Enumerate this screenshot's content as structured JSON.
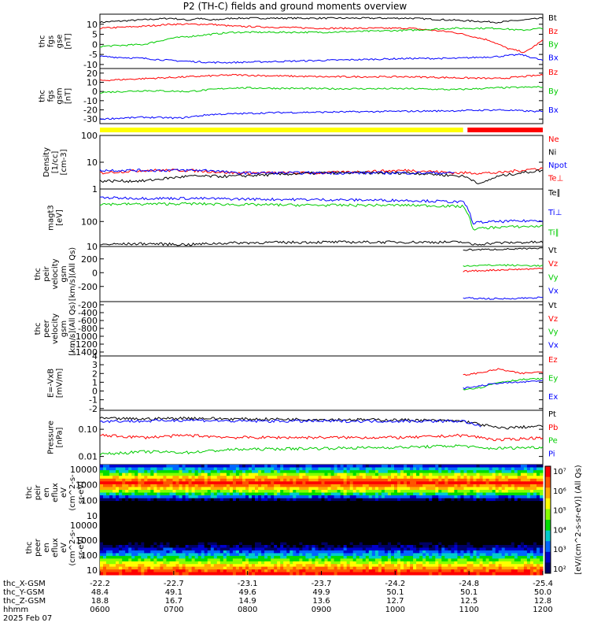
{
  "title": "P2 (TH-C) fields and ground moments overview",
  "colors": {
    "black": "#000000",
    "red": "#ff0000",
    "green": "#00cc00",
    "blue": "#0000ff",
    "yellow": "#ffff00"
  },
  "chart_data": [
    {
      "type": "line",
      "panel": "fgs_gse",
      "ylabel": [
        "thc",
        "fgs",
        "gse",
        "[nT]"
      ],
      "ylim": [
        -12,
        15
      ],
      "ticks": [
        10,
        5,
        0,
        -5,
        -10
      ],
      "series": [
        {
          "name": "Bt",
          "color": "#000000",
          "x": [
            0,
            0.16,
            0.2,
            0.22,
            0.25,
            0.3,
            0.5,
            0.7,
            0.8,
            0.9,
            0.95,
            1
          ],
          "y": [
            11,
            13,
            12,
            13,
            12,
            13,
            13,
            13,
            12,
            11,
            12,
            13
          ]
        },
        {
          "name": "Bz",
          "color": "#ff0000",
          "x": [
            0,
            0.1,
            0.16,
            0.25,
            0.3,
            0.5,
            0.7,
            0.8,
            0.88,
            0.92,
            0.96,
            1
          ],
          "y": [
            8,
            9,
            10,
            10,
            9,
            8,
            8,
            6,
            2,
            -2,
            -4,
            2
          ]
        },
        {
          "name": "By",
          "color": "#00cc00",
          "x": [
            0,
            0.1,
            0.16,
            0.25,
            0.3,
            0.5,
            0.7,
            0.8,
            0.9,
            0.95,
            1
          ],
          "y": [
            -1,
            0,
            3,
            5,
            6,
            6,
            7,
            8,
            8,
            7,
            8
          ]
        },
        {
          "name": "Bx",
          "color": "#0000ff",
          "x": [
            0,
            0.1,
            0.16,
            0.25,
            0.3,
            0.5,
            0.7,
            0.8,
            0.9,
            0.95,
            1
          ],
          "y": [
            -6,
            -7,
            -8,
            -9,
            -9,
            -8,
            -7,
            -7,
            -6,
            -5,
            -8
          ]
        }
      ]
    },
    {
      "type": "line",
      "panel": "fgs_gsm",
      "ylabel": [
        "thc",
        "fgs",
        "gsm",
        "[nT]"
      ],
      "ylim": [
        -35,
        25
      ],
      "ticks": [
        20,
        10,
        0,
        -10,
        -20,
        -30
      ],
      "series": [
        {
          "name": "Bz",
          "color": "#ff0000",
          "x": [
            0,
            0.1,
            0.2,
            0.3,
            0.5,
            0.7,
            0.8,
            0.9,
            1
          ],
          "y": [
            12,
            14,
            16,
            18,
            16,
            16,
            15,
            14,
            18
          ]
        },
        {
          "name": "By",
          "color": "#00cc00",
          "x": [
            0,
            0.1,
            0.2,
            0.3,
            0.5,
            0.7,
            0.8,
            0.9,
            1
          ],
          "y": [
            -1,
            1,
            0,
            4,
            3,
            3,
            2,
            4,
            5
          ]
        },
        {
          "name": "Bx",
          "color": "#0000ff",
          "x": [
            0,
            0.1,
            0.18,
            0.25,
            0.4,
            0.6,
            0.8,
            0.9,
            1
          ],
          "y": [
            -30,
            -28,
            -29,
            -25,
            -23,
            -22,
            -21,
            -20,
            -22
          ]
        }
      ]
    },
    {
      "type": "line",
      "panel": "density",
      "ylabel": [
        "Density",
        "[1/cc]",
        "[cm-3]"
      ],
      "ylim": [
        1,
        100
      ],
      "log": true,
      "ticks": [
        100,
        10,
        1
      ],
      "series": [
        {
          "name": "Ne",
          "color": "#ff0000",
          "x": [
            0,
            0.1,
            0.2,
            0.3,
            0.5,
            0.7,
            0.8,
            0.82,
            0.9,
            1
          ],
          "y": [
            4,
            5,
            5,
            4,
            4,
            5,
            4,
            4,
            4,
            6
          ]
        },
        {
          "name": "Ni",
          "color": "#000000",
          "x": [
            0,
            0.1,
            0.2,
            0.25,
            0.3,
            0.5,
            0.7,
            0.82,
            0.86,
            0.9,
            1
          ],
          "y": [
            2,
            2,
            3,
            3,
            3,
            4,
            4,
            3,
            1.5,
            3,
            5
          ]
        },
        {
          "name": "Npot",
          "color": "#0000ff",
          "x": [
            0,
            0.1,
            0.2,
            0.25,
            0.3,
            0.5,
            0.7,
            0.8
          ],
          "y": [
            5,
            5,
            5,
            5,
            4,
            4,
            4,
            4
          ]
        },
        {
          "name": "Te⊥",
          "color": "#ff0000",
          "x": [],
          "y": []
        }
      ]
    },
    {
      "type": "line",
      "panel": "temperature",
      "ylabel": [
        "magt3",
        "[eV]"
      ],
      "ylim": [
        10,
        2000
      ],
      "log": true,
      "ticks": [
        100,
        10
      ],
      "series": [
        {
          "name": "Te∥",
          "color": "#000000",
          "x": [
            0,
            0.1,
            0.2,
            0.3,
            0.5,
            0.7,
            0.82,
            0.84,
            0.9,
            1
          ],
          "y": [
            12,
            13,
            12,
            14,
            15,
            15,
            15,
            12,
            14,
            15
          ]
        },
        {
          "name": "Ti⊥",
          "color": "#0000ff",
          "x": [
            0,
            0.1,
            0.2,
            0.3,
            0.5,
            0.7,
            0.82,
            0.84,
            0.9,
            1
          ],
          "y": [
            900,
            850,
            850,
            800,
            750,
            700,
            600,
            90,
            100,
            110
          ]
        },
        {
          "name": "Ti∥",
          "color": "#00cc00",
          "x": [
            0,
            0.1,
            0.2,
            0.3,
            0.5,
            0.7,
            0.82,
            0.84,
            0.9,
            1
          ],
          "y": [
            500,
            500,
            520,
            480,
            450,
            450,
            400,
            50,
            60,
            65
          ]
        }
      ]
    },
    {
      "type": "line",
      "panel": "peir_velocity",
      "ylabel": [
        "thc",
        "peir",
        "velocity",
        "gsm",
        "[km/s](All Qs)"
      ],
      "ylim": [
        -420,
        380
      ],
      "ticks": [
        200,
        0,
        -200
      ],
      "series": [
        {
          "name": "Vt",
          "color": "#000000",
          "x": [
            0.82,
            0.9,
            1
          ],
          "y": [
            330,
            340,
            350
          ]
        },
        {
          "name": "Vz",
          "color": "#ff0000",
          "x": [
            0.82,
            0.9,
            1
          ],
          "y": [
            20,
            40,
            60
          ]
        },
        {
          "name": "Vy",
          "color": "#00cc00",
          "x": [
            0.82,
            0.9,
            1
          ],
          "y": [
            100,
            110,
            100
          ]
        },
        {
          "name": "Vx",
          "color": "#0000ff",
          "x": [
            0.82,
            0.9,
            1
          ],
          "y": [
            -370,
            -380,
            -360
          ]
        }
      ]
    },
    {
      "type": "line",
      "panel": "peer_velocity",
      "ylabel": [
        "thc",
        "peer",
        "velocity",
        "gsm",
        "[km/s](All Qs)"
      ],
      "ylim": [
        -1500,
        -120
      ],
      "ticks": [
        -200,
        -400,
        -600,
        -800,
        -1000,
        -1200,
        -1400
      ],
      "series": [
        {
          "name": "Vt",
          "color": "#000000",
          "x": [],
          "y": []
        },
        {
          "name": "Vz",
          "color": "#ff0000",
          "x": [],
          "y": []
        },
        {
          "name": "Vy",
          "color": "#00cc00",
          "x": [],
          "y": []
        },
        {
          "name": "Vx",
          "color": "#0000ff",
          "x": [],
          "y": []
        }
      ]
    },
    {
      "type": "line",
      "panel": "efield",
      "ylabel": [
        "E=-VxB",
        "[mV/m]"
      ],
      "ylim": [
        -2.2,
        4
      ],
      "ticks": [
        4,
        3,
        2,
        1,
        0,
        -1,
        -2
      ],
      "series": [
        {
          "name": "Ez",
          "color": "#ff0000",
          "x": [
            0.82,
            0.86,
            0.9,
            0.95,
            1
          ],
          "y": [
            1.8,
            2.1,
            2.5,
            2.0,
            2.2
          ]
        },
        {
          "name": "Ey",
          "color": "#00cc00",
          "x": [
            0.82,
            0.86,
            0.9,
            0.95,
            1
          ],
          "y": [
            0.2,
            0.4,
            1.0,
            1.3,
            1.4
          ]
        },
        {
          "name": "Ex",
          "color": "#0000ff",
          "x": [
            0.82,
            0.86,
            0.9,
            0.95,
            1
          ],
          "y": [
            0.3,
            0.6,
            0.9,
            1.0,
            1.2
          ]
        }
      ]
    },
    {
      "type": "line",
      "panel": "pressure",
      "ylabel": [
        "Pressure",
        "[nPa]"
      ],
      "ylim": [
        0.005,
        0.5
      ],
      "log": true,
      "ticks": [
        0.1,
        0.01
      ],
      "tick_labels": [
        "0.10",
        "0.01"
      ],
      "series": [
        {
          "name": "Pt",
          "color": "#000000",
          "x": [
            0,
            0.1,
            0.2,
            0.3,
            0.5,
            0.7,
            0.82,
            0.86,
            0.9,
            1
          ],
          "y": [
            0.25,
            0.24,
            0.26,
            0.24,
            0.23,
            0.22,
            0.2,
            0.15,
            0.11,
            0.13
          ]
        },
        {
          "name": "Pb",
          "color": "#ff0000",
          "x": [
            0,
            0.1,
            0.2,
            0.3,
            0.5,
            0.7,
            0.82,
            0.86,
            0.9,
            1
          ],
          "y": [
            0.06,
            0.05,
            0.06,
            0.05,
            0.05,
            0.05,
            0.06,
            0.05,
            0.04,
            0.05
          ]
        },
        {
          "name": "Pe",
          "color": "#00cc00",
          "x": [
            0,
            0.1,
            0.2,
            0.3,
            0.5,
            0.7,
            0.82,
            0.86,
            0.9,
            1
          ],
          "y": [
            0.012,
            0.015,
            0.014,
            0.018,
            0.02,
            0.022,
            0.025,
            0.02,
            0.02,
            0.022
          ]
        },
        {
          "name": "Pi",
          "color": "#0000ff",
          "x": [
            0,
            0.1,
            0.2,
            0.3,
            0.5,
            0.7,
            0.82,
            0.86
          ],
          "y": [
            0.2,
            0.2,
            0.22,
            0.2,
            0.2,
            0.2,
            0.2,
            0.12
          ]
        }
      ]
    },
    {
      "type": "heatmap",
      "panel": "peir_spec",
      "ylabel": [
        "thc",
        "peir",
        "en",
        "eflux",
        "eV",
        "(cm^2-s-",
        "sr-eV)"
      ],
      "ylim": [
        5,
        20000
      ],
      "log": true,
      "ticks": [
        10000,
        1000,
        100,
        10
      ],
      "tick_labels": [
        "10000",
        "1000",
        "100",
        "10"
      ]
    },
    {
      "type": "heatmap",
      "panel": "peer_spec",
      "ylabel": [
        "thc",
        "peer",
        "en",
        "eflux",
        "eV",
        "(cm^2-s-",
        "sr-eV)"
      ],
      "ylim": [
        5,
        20000
      ],
      "log": true,
      "ticks": [
        10000,
        1000,
        100,
        10
      ],
      "tick_labels": [
        "10000",
        "1000",
        "100",
        "10"
      ]
    }
  ],
  "colorbar": {
    "label": "[eV/(cm^2-s-sr-eV)] (All Qs)",
    "ticks": [
      "10⁷",
      "10⁶",
      "10⁵",
      "10⁴",
      "10³",
      "10²"
    ]
  },
  "xaxis": {
    "rows": [
      {
        "label": "thc_X-GSM",
        "values": [
          "-22.2",
          "-22.7",
          "-23.1",
          "-23.7",
          "-24.2",
          "-24.8",
          "-25.4"
        ]
      },
      {
        "label": "thc_Y-GSM",
        "values": [
          "48.4",
          "49.1",
          "49.6",
          "49.9",
          "50.1",
          "50.1",
          "50.0"
        ]
      },
      {
        "label": "thc_Z-GSM",
        "values": [
          "18.8",
          "16.7",
          "14.9",
          "13.6",
          "12.7",
          "12.5",
          "12.8"
        ]
      },
      {
        "label": "hhmm",
        "values": [
          "0600",
          "0700",
          "0800",
          "0900",
          "1000",
          "1100",
          "1200"
        ]
      }
    ],
    "date": "2025 Feb 07"
  },
  "bar_labels": []
}
